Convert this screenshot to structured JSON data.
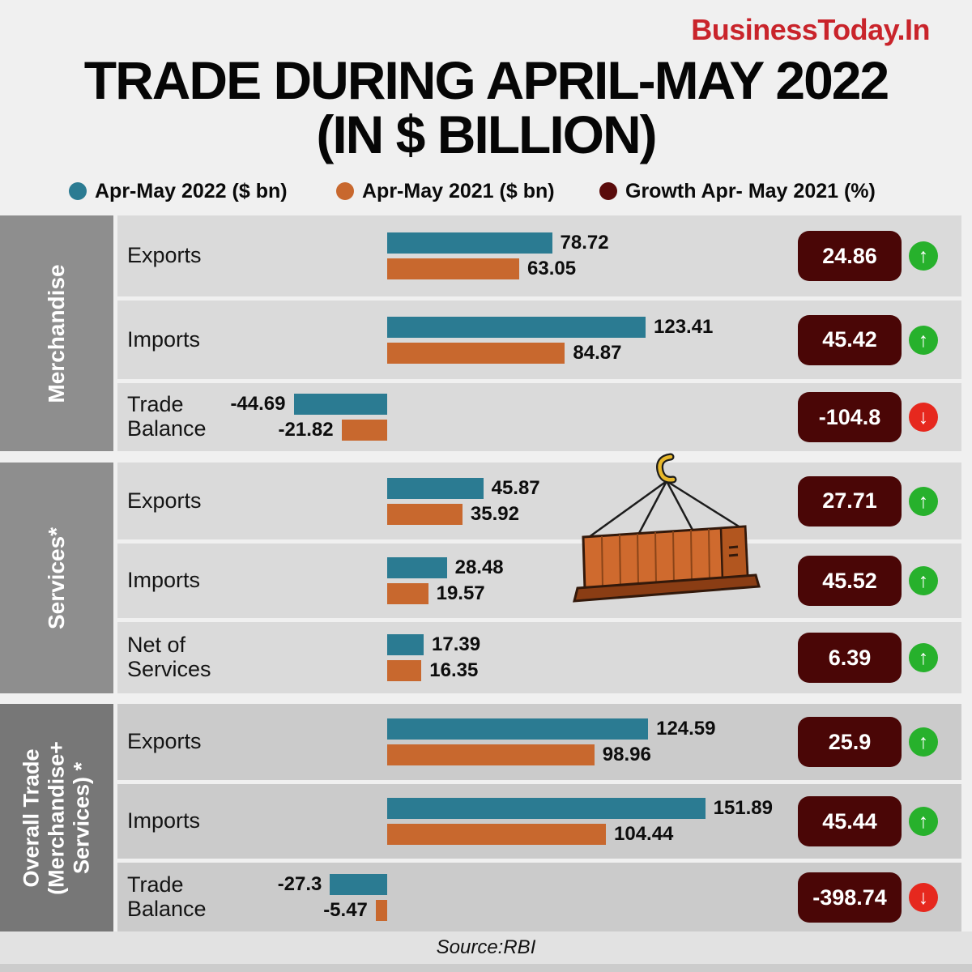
{
  "brand": "BusinessToday.In",
  "title": {
    "line1": "TRADE DURING APRIL-MAY 2022",
    "line2": "(IN $ BILLION)"
  },
  "legend": {
    "items": [
      {
        "label": "Apr-May 2022 ($ bn)",
        "color": "#2b7b92",
        "icon": "teal-dot"
      },
      {
        "label": "Apr-May 2021 ($ bn)",
        "color": "#c8682e",
        "icon": "orange-dot"
      },
      {
        "label": "Growth Apr- May 2021 (%)",
        "color": "#5a0b0b",
        "icon": "maroon-dot"
      }
    ]
  },
  "colors": {
    "bar_2022": "#2b7b92",
    "bar_2021": "#c8682e",
    "growth_badge": "#4a0606",
    "up_arrow": "#27b12c",
    "down_arrow": "#e6281e",
    "brand_red": "#c9242b"
  },
  "source": "Source:RBI",
  "chart_data": {
    "type": "bar",
    "orientation": "horizontal",
    "unit": "$ billion",
    "series_names": [
      "Apr-May 2022 ($ bn)",
      "Apr-May 2021 ($ bn)"
    ],
    "growth_series_name": "Growth Apr- May 2021 (%)",
    "sections": [
      {
        "sidebar": "Merchandise",
        "sidebar_lines": [
          "Merchandise"
        ],
        "rows": [
          {
            "label": "Exports",
            "apr_may_2022_bn": 78.72,
            "apr_may_2021_bn": 63.05,
            "growth_pct": 24.86,
            "direction": "up"
          },
          {
            "label": "Imports",
            "apr_may_2022_bn": 123.41,
            "apr_may_2021_bn": 84.87,
            "growth_pct": 45.42,
            "direction": "up"
          },
          {
            "label": "Trade Balance",
            "apr_may_2022_bn": -44.69,
            "apr_may_2021_bn": -21.82,
            "growth_pct": -104.8,
            "direction": "down"
          }
        ]
      },
      {
        "sidebar": "Services*",
        "sidebar_lines": [
          "Services*"
        ],
        "rows": [
          {
            "label": "Exports",
            "apr_may_2022_bn": 45.87,
            "apr_may_2021_bn": 35.92,
            "growth_pct": 27.71,
            "direction": "up"
          },
          {
            "label": "Imports",
            "apr_may_2022_bn": 28.48,
            "apr_may_2021_bn": 19.57,
            "growth_pct": 45.52,
            "direction": "up"
          },
          {
            "label": "Net of Services",
            "apr_may_2022_bn": 17.39,
            "apr_may_2021_bn": 16.35,
            "growth_pct": 6.39,
            "direction": "up"
          }
        ]
      },
      {
        "sidebar": "Overall Trade (Merchandise+ Services) *",
        "sidebar_lines": [
          "Overall Trade",
          "(Merchandise+",
          "Services) *"
        ],
        "rows": [
          {
            "label": "Exports",
            "apr_may_2022_bn": 124.59,
            "apr_may_2021_bn": 98.96,
            "growth_pct": 25.9,
            "direction": "up"
          },
          {
            "label": "Imports",
            "apr_may_2022_bn": 151.89,
            "apr_may_2021_bn": 104.44,
            "growth_pct": 45.44,
            "direction": "up"
          },
          {
            "label": "Trade Balance",
            "apr_may_2022_bn": -27.3,
            "apr_may_2021_bn": -5.47,
            "growth_pct": -398.74,
            "direction": "down"
          }
        ]
      }
    ]
  }
}
